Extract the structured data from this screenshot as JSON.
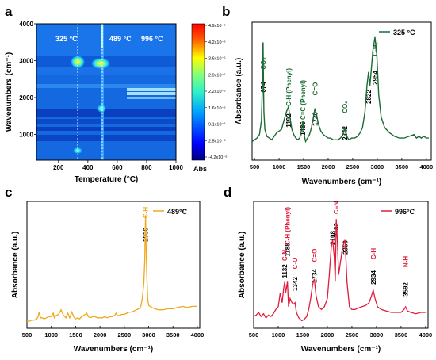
{
  "panels": {
    "a": {
      "letter": "a",
      "xlabel": "Temperature (°C)",
      "ylabel": "Wavenumbers (cm⁻¹)",
      "xticks": [
        "200",
        "400",
        "600",
        "800",
        "1000"
      ],
      "yticks": [
        "1000",
        "2000",
        "3000",
        "4000"
      ],
      "temps": [
        "325 °C",
        "489 °C",
        "996 °C"
      ],
      "colorbar_ticks": [
        "4.9x10⁻⁵",
        "4.2x10⁻⁵",
        "3.6x10⁻⁵",
        "2.9x10⁻⁵",
        "2.2x10⁻⁵",
        "1.6x10⁻⁵",
        "9.1x10⁻⁶",
        "2.5x10⁻⁶",
        "-4.2x10⁻⁶"
      ],
      "colorbar_label": "Abs"
    },
    "b": {
      "letter": "b",
      "xlabel": "Wavenumbers (cm⁻¹)",
      "ylabel": "Absorbance (a.u.)",
      "xticks": [
        "500",
        "1000",
        "1500",
        "2000",
        "2500",
        "3000",
        "3500",
        "4000"
      ],
      "legend": "325 °C",
      "color": "#1b6b34",
      "peaks": [
        "674",
        "1192",
        "1486",
        "1730",
        "2342",
        "2822",
        "2954"
      ],
      "groups": [
        "CO₂",
        "C-H (Phenyl)",
        "C=C (Phenyl)",
        "C=O",
        "CO₂",
        "C-Hₓ"
      ]
    },
    "c": {
      "letter": "c",
      "xlabel": "Wavenumbers (cm⁻¹)",
      "ylabel": "Absorbance (a.u.)",
      "xticks": [
        "500",
        "1000",
        "1500",
        "2000",
        "2500",
        "3000",
        "3500",
        "4000"
      ],
      "legend": "489°C",
      "color": "#f0a81c",
      "peaks": [
        "2936"
      ],
      "groups": [
        "C-H"
      ]
    },
    "d": {
      "letter": "d",
      "xlabel": "Wavenumbers (cm⁻¹)",
      "ylabel": "Absorbance (a.u.)",
      "xticks": [
        "500",
        "1000",
        "1500",
        "2000",
        "2500",
        "3000",
        "3500",
        "4000"
      ],
      "legend": "996°C",
      "color": "#e11d3c",
      "peaks": [
        "1132",
        "1188",
        "1342",
        "1734",
        "2108",
        "2182",
        "2360",
        "2934",
        "3592"
      ],
      "groups": [
        "C-N",
        "C-H (Phenyl)",
        "C-O",
        "C=O",
        "C≡N",
        "C-H",
        "N-H"
      ]
    }
  },
  "chart_data": [
    {
      "type": "heatmap",
      "panel": "a",
      "xlabel": "Temperature (°C)",
      "ylabel": "Wavenumbers (cm⁻¹)",
      "xlim": [
        50,
        1000
      ],
      "ylim": [
        300,
        4000
      ],
      "colorbar": {
        "label": "Abs",
        "min": -4.2e-06,
        "max": 4.9e-05
      },
      "temperature_markers": [
        325,
        489,
        996
      ],
      "hotspots": [
        {
          "x": 325,
          "y": 2960,
          "level": "high"
        },
        {
          "x": 480,
          "y": 2950,
          "level": "max"
        },
        {
          "x": 325,
          "y": 680,
          "level": "medium"
        },
        {
          "x": 489,
          "y": 1500,
          "level": "medium"
        },
        {
          "x": 489,
          "y": 3000,
          "level": "medium"
        }
      ],
      "bands": [
        {
          "y": 3000,
          "level": "low"
        },
        {
          "y": 2200,
          "level": "low"
        },
        {
          "y": 2150,
          "level": "low"
        },
        {
          "y": 1500,
          "level": "low"
        },
        {
          "y": 700,
          "level": "low"
        }
      ]
    },
    {
      "type": "line",
      "panel": "b",
      "xlabel": "Wavenumbers (cm⁻¹)",
      "ylabel": "Absorbance (a.u.)",
      "xlim": [
        450,
        4100
      ],
      "series": [
        {
          "name": "325 °C",
          "x": [
            450,
            500,
            550,
            600,
            640,
            660,
            668,
            674,
            680,
            690,
            710,
            750,
            800,
            850,
            900,
            950,
            1000,
            1050,
            1100,
            1150,
            1192,
            1220,
            1260,
            1300,
            1340,
            1380,
            1420,
            1460,
            1486,
            1510,
            1540,
            1580,
            1620,
            1660,
            1700,
            1730,
            1760,
            1800,
            1850,
            1900,
            1950,
            2000,
            2050,
            2100,
            2150,
            2200,
            2250,
            2300,
            2342,
            2380,
            2420,
            2480,
            2540,
            2600,
            2650,
            2700,
            2750,
            2790,
            2822,
            2850,
            2880,
            2910,
            2954,
            2990,
            3030,
            3080,
            3150,
            3250,
            3350,
            3450,
            3550,
            3650,
            3750,
            3800,
            3850,
            3900,
            3950,
            4000,
            4050
          ],
          "y": [
            0.08,
            0.09,
            0.1,
            0.12,
            0.2,
            0.4,
            0.62,
            0.65,
            0.5,
            0.25,
            0.15,
            0.11,
            0.1,
            0.09,
            0.11,
            0.13,
            0.14,
            0.15,
            0.2,
            0.25,
            0.28,
            0.22,
            0.15,
            0.12,
            0.1,
            0.09,
            0.1,
            0.15,
            0.2,
            0.12,
            0.08,
            0.1,
            0.12,
            0.16,
            0.22,
            0.27,
            0.24,
            0.18,
            0.14,
            0.12,
            0.11,
            0.1,
            0.1,
            0.09,
            0.09,
            0.09,
            0.1,
            0.12,
            0.16,
            0.11,
            0.09,
            0.1,
            0.1,
            0.11,
            0.13,
            0.16,
            0.25,
            0.4,
            0.48,
            0.4,
            0.5,
            0.6,
            0.68,
            0.58,
            0.35,
            0.22,
            0.16,
            0.13,
            0.11,
            0.1,
            0.1,
            0.11,
            0.12,
            0.1,
            0.11,
            0.1,
            0.11,
            0.1,
            0.1
          ]
        }
      ],
      "annotations": [
        "674",
        "1192",
        "1486",
        "1730",
        "2342",
        "2822",
        "2954",
        "CO₂",
        "C-H (Phenyl)",
        "C=C (Phenyl)",
        "C=O",
        "CO₂",
        "C-Hₓ"
      ]
    },
    {
      "type": "line",
      "panel": "c",
      "xlabel": "Wavenumbers (cm⁻¹)",
      "ylabel": "Absorbance (a.u.)",
      "xlim": [
        500,
        4050
      ],
      "series": [
        {
          "name": "489°C",
          "x": [
            500,
            550,
            600,
            650,
            700,
            730,
            750,
            780,
            820,
            850,
            900,
            950,
            1000,
            1040,
            1060,
            1100,
            1150,
            1200,
            1250,
            1300,
            1340,
            1380,
            1420,
            1460,
            1500,
            1540,
            1580,
            1620,
            1660,
            1700,
            1730,
            1760,
            1800,
            1850,
            1900,
            1950,
            2000,
            2050,
            2100,
            2150,
            2200,
            2250,
            2300,
            2330,
            2360,
            2400,
            2450,
            2500,
            2550,
            2600,
            2650,
            2700,
            2750,
            2800,
            2840,
            2870,
            2900,
            2920,
            2936,
            2950,
            2965,
            2980,
            3000,
            3030,
            3070,
            3120,
            3200,
            3300,
            3400,
            3500,
            3600,
            3700,
            3800,
            3900,
            4000
          ],
          "y": [
            0.02,
            0.02,
            0.03,
            0.03,
            0.04,
            0.06,
            0.1,
            0.05,
            0.05,
            0.04,
            0.05,
            0.06,
            0.06,
            0.09,
            0.05,
            0.07,
            0.08,
            0.12,
            0.07,
            0.05,
            0.09,
            0.05,
            0.1,
            0.06,
            0.04,
            0.05,
            0.04,
            0.06,
            0.07,
            0.08,
            0.09,
            0.06,
            0.05,
            0.06,
            0.06,
            0.05,
            0.05,
            0.05,
            0.06,
            0.05,
            0.06,
            0.06,
            0.07,
            0.09,
            0.07,
            0.07,
            0.08,
            0.08,
            0.09,
            0.1,
            0.1,
            0.11,
            0.12,
            0.13,
            0.15,
            0.22,
            0.35,
            0.55,
            0.95,
            0.6,
            0.38,
            0.22,
            0.16,
            0.15,
            0.14,
            0.13,
            0.12,
            0.12,
            0.13,
            0.13,
            0.14,
            0.15,
            0.14,
            0.15,
            0.15
          ]
        }
      ],
      "annotations": [
        "2936",
        "C-H"
      ]
    },
    {
      "type": "line",
      "panel": "d",
      "xlabel": "Wavenumbers (cm⁻¹)",
      "ylabel": "Absorbance (a.u.)",
      "xlim": [
        500,
        4050
      ],
      "series": [
        {
          "name": "996°C",
          "x": [
            500,
            550,
            600,
            650,
            700,
            750,
            800,
            850,
            900,
            950,
            1000,
            1040,
            1080,
            1110,
            1132,
            1150,
            1170,
            1188,
            1210,
            1240,
            1280,
            1320,
            1342,
            1370,
            1420,
            1480,
            1530,
            1580,
            1620,
            1660,
            1700,
            1734,
            1770,
            1820,
            1880,
            1940,
            2000,
            2040,
            2080,
            2108,
            2140,
            2160,
            2182,
            2200,
            2230,
            2270,
            2310,
            2360,
            2400,
            2450,
            2500,
            2560,
            2620,
            2700,
            2780,
            2850,
            2900,
            2934,
            2970,
            3020,
            3100,
            3200,
            3300,
            3400,
            3500,
            3560,
            3592,
            3630,
            3700,
            3800,
            3900,
            4000
          ],
          "y": [
            0.05,
            0.06,
            0.08,
            0.05,
            0.07,
            0.04,
            0.06,
            0.05,
            0.07,
            0.1,
            0.12,
            0.22,
            0.15,
            0.25,
            0.3,
            0.22,
            0.26,
            0.3,
            0.12,
            0.18,
            0.15,
            0.14,
            0.15,
            0.08,
            0.04,
            0.02,
            0.03,
            0.05,
            0.1,
            0.18,
            0.28,
            0.32,
            0.2,
            0.12,
            0.1,
            0.12,
            0.18,
            0.35,
            0.55,
            0.6,
            0.48,
            0.3,
            0.75,
            0.62,
            0.35,
            0.45,
            0.55,
            0.6,
            0.3,
            0.12,
            0.1,
            0.1,
            0.11,
            0.12,
            0.13,
            0.15,
            0.2,
            0.24,
            0.18,
            0.12,
            0.1,
            0.09,
            0.08,
            0.08,
            0.08,
            0.1,
            0.12,
            0.09,
            0.08,
            0.07,
            0.08,
            0.08
          ]
        }
      ],
      "annotations": [
        "1132",
        "1188",
        "1342",
        "1734",
        "2108",
        "2182",
        "2360",
        "2934",
        "3592",
        "C-N",
        "C-H (Phenyl)",
        "C-O",
        "C=O",
        "C≡N",
        "C-H",
        "N-H"
      ]
    }
  ]
}
